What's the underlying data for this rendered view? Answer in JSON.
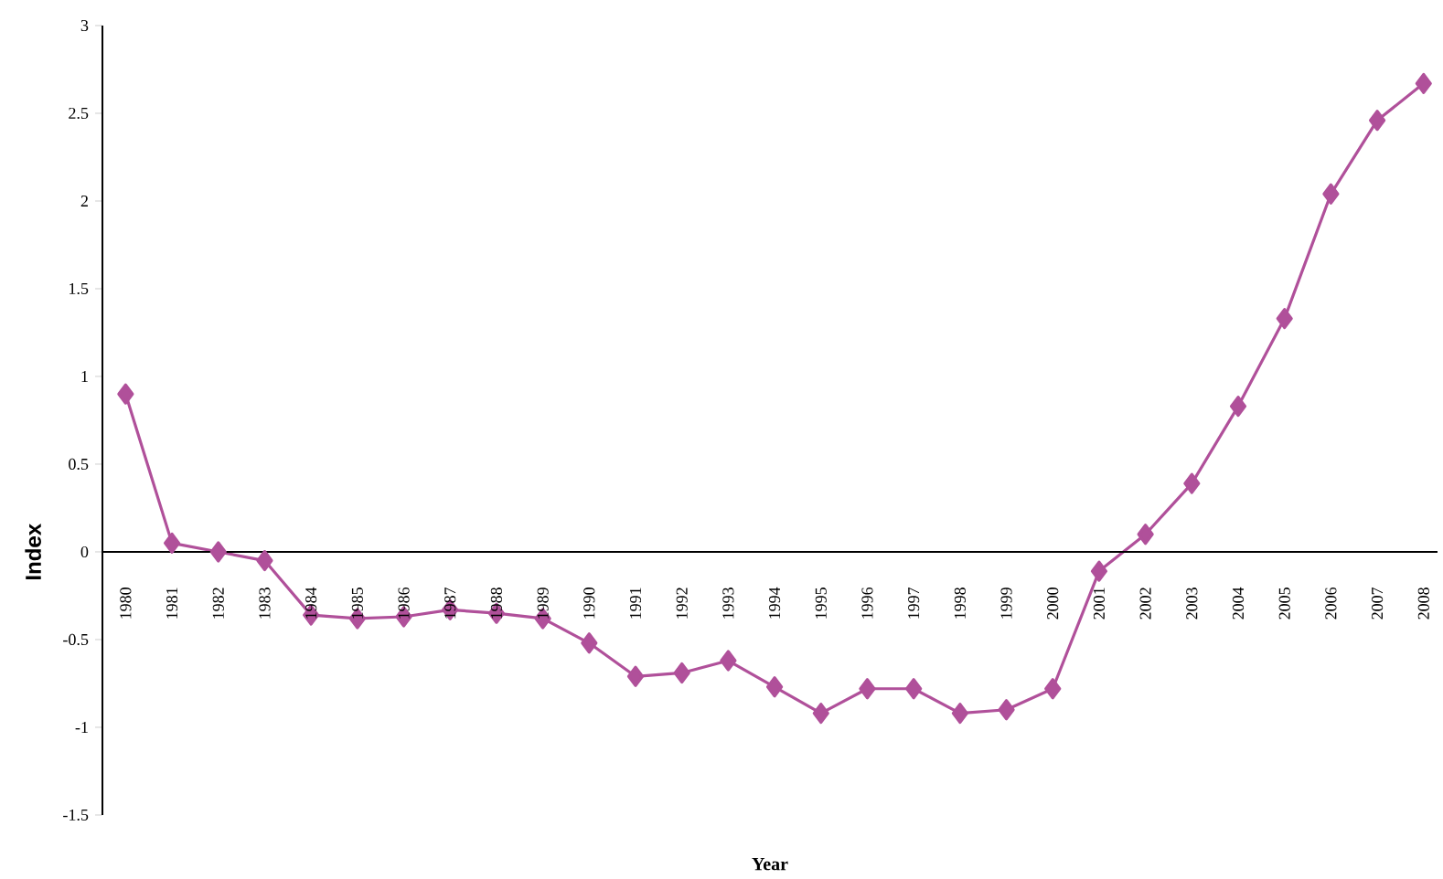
{
  "chart_data": {
    "type": "line",
    "xlabel": "Year",
    "ylabel": "Index",
    "categories": [
      "1980",
      "1981",
      "1982",
      "1983",
      "1984",
      "1985",
      "1986",
      "1987",
      "1988",
      "1989",
      "1990",
      "1991",
      "1992",
      "1993",
      "1994",
      "1995",
      "1996",
      "1997",
      "1998",
      "1999",
      "2000",
      "2001",
      "2002",
      "2003",
      "2004",
      "2005",
      "2006",
      "2007",
      "2008"
    ],
    "series": [
      {
        "color": "#b0509a",
        "values": [
          0.9,
          0.05,
          0.0,
          -0.05,
          -0.36,
          -0.38,
          -0.37,
          -0.33,
          -0.35,
          -0.38,
          -0.52,
          -0.71,
          -0.69,
          -0.62,
          -0.77,
          -0.92,
          -0.78,
          -0.78,
          -0.92,
          -0.9,
          -0.78,
          -0.11,
          0.1,
          0.39,
          0.83,
          1.33,
          2.04,
          2.46,
          2.67
        ]
      }
    ],
    "ylim": [
      -1.5,
      3
    ],
    "yticks": [
      -1.5,
      -1,
      -0.5,
      0,
      0.5,
      1,
      1.5,
      2,
      2.5,
      3
    ],
    "marker": "diamond",
    "line_style": "solid",
    "grid": false
  }
}
